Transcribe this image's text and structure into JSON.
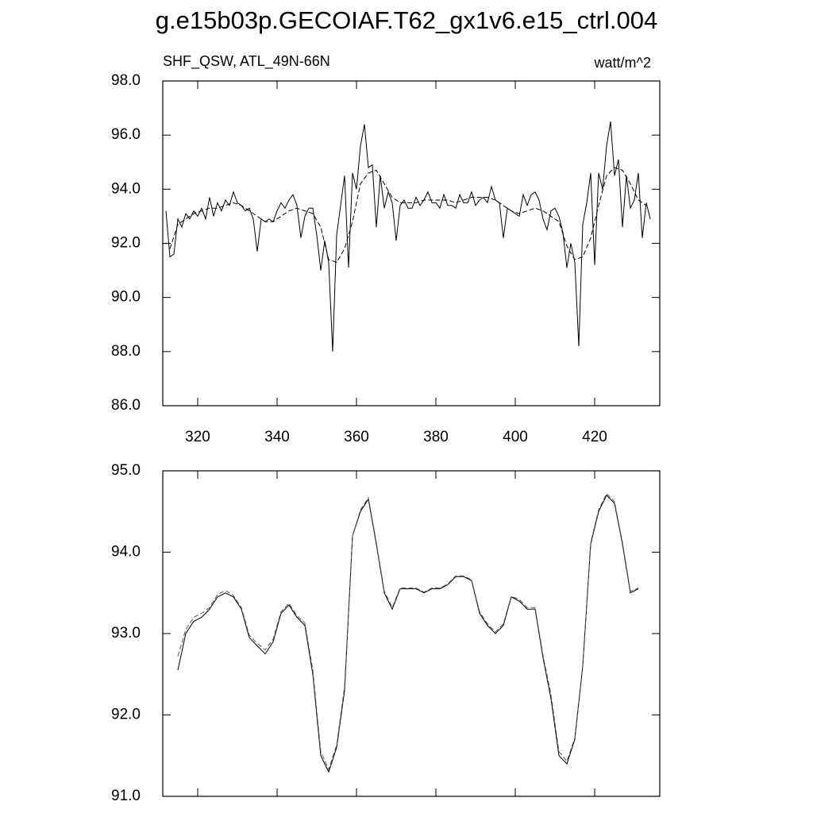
{
  "title": "g.e15b03p.GECOIAF.T62_gx1v6.e15_ctrl.004",
  "chart_data": [
    {
      "type": "line",
      "subtitle": "SHF_QSW, ATL_49N-66N",
      "units": "watt/m^2",
      "xlim": [
        311.2,
        436.4
      ],
      "xticks": [
        320,
        340,
        360,
        380,
        400,
        420
      ],
      "ylim": [
        86,
        98
      ],
      "yticks": [
        {
          "value": 86,
          "label": "86.0"
        },
        {
          "value": 88,
          "label": "88.0"
        },
        {
          "value": 90,
          "label": "90.0"
        },
        {
          "value": 92,
          "label": "92.0"
        },
        {
          "value": 94,
          "label": "94.0"
        },
        {
          "value": 96,
          "label": "96.0"
        },
        {
          "value": 98,
          "label": "98.0"
        }
      ],
      "x": [
        312,
        313,
        314,
        315,
        316,
        317,
        318,
        319,
        320,
        321,
        322,
        323,
        324,
        325,
        326,
        327,
        328,
        329,
        330,
        331,
        332,
        333,
        334,
        335,
        336,
        337,
        338,
        339,
        340,
        341,
        342,
        343,
        344,
        345,
        346,
        347,
        348,
        349,
        350,
        351,
        352,
        353,
        354,
        355,
        356,
        357,
        358,
        359,
        360,
        361,
        362,
        363,
        364,
        365,
        366,
        367,
        368,
        369,
        370,
        371,
        372,
        373,
        374,
        375,
        376,
        377,
        378,
        379,
        380,
        381,
        382,
        383,
        384,
        385,
        386,
        387,
        388,
        389,
        390,
        391,
        392,
        393,
        394,
        395,
        396,
        397,
        398,
        399,
        400,
        401,
        402,
        403,
        404,
        405,
        406,
        407,
        408,
        409,
        410,
        411,
        412,
        413,
        414,
        415,
        416,
        417,
        418,
        419,
        420,
        421,
        422,
        423,
        424,
        425,
        426,
        427,
        428,
        429,
        430,
        431,
        432,
        433,
        434
      ],
      "series": [
        {
          "color": "#000000",
          "dash": false,
          "values": [
            93.2,
            91.5,
            91.6,
            92.9,
            92.6,
            93.1,
            92.9,
            93.2,
            93.0,
            93.3,
            92.9,
            93.7,
            93.0,
            93.5,
            93.2,
            93.6,
            93.4,
            93.9,
            93.5,
            93.4,
            93.2,
            93.3,
            92.9,
            91.7,
            92.9,
            92.8,
            92.9,
            92.8,
            93.2,
            93.5,
            93.3,
            93.6,
            93.8,
            93.4,
            92.2,
            93.0,
            93.3,
            93.3,
            92.3,
            91.0,
            92.1,
            91.3,
            88.0,
            92.3,
            93.4,
            94.5,
            91.1,
            94.6,
            94.0,
            95.6,
            96.4,
            94.8,
            94.9,
            92.6,
            94.5,
            93.3,
            93.9,
            93.5,
            92.1,
            93.4,
            93.6,
            93.3,
            93.3,
            93.7,
            93.4,
            93.6,
            93.9,
            93.5,
            93.5,
            93.3,
            93.8,
            93.4,
            93.4,
            93.3,
            93.8,
            93.5,
            93.5,
            93.9,
            93.4,
            93.6,
            93.7,
            93.5,
            94.1,
            93.6,
            93.5,
            92.2,
            93.3,
            93.2,
            93.1,
            93.0,
            93.8,
            93.4,
            93.8,
            93.9,
            93.6,
            92.9,
            92.5,
            93.2,
            93.3,
            93.0,
            92.4,
            91.1,
            92.0,
            91.3,
            88.2,
            92.7,
            93.5,
            94.6,
            91.2,
            94.6,
            94.0,
            95.6,
            96.5,
            94.5,
            95.1,
            92.6,
            94.5,
            93.3,
            93.6,
            94.6,
            92.2,
            93.5,
            92.9
          ]
        },
        {
          "color": "#000000",
          "dash": true,
          "x": [
            313,
            315,
            317,
            319,
            321,
            323,
            325,
            327,
            329,
            331,
            333,
            335,
            337,
            339,
            341,
            343,
            345,
            347,
            349,
            351,
            353,
            355,
            357,
            359,
            361,
            363,
            365,
            367,
            369,
            371,
            373,
            375,
            377,
            379,
            381,
            383,
            385,
            387,
            389,
            391,
            393,
            395,
            397,
            399,
            401,
            403,
            405,
            407,
            409,
            411,
            413,
            415,
            417,
            419,
            421,
            423,
            425,
            427,
            429,
            431,
            433
          ],
          "values": [
            91.8,
            92.7,
            92.9,
            93.1,
            93.2,
            93.3,
            93.3,
            93.4,
            93.5,
            93.4,
            93.2,
            93.0,
            92.8,
            92.8,
            93.0,
            93.2,
            93.3,
            93.2,
            93.1,
            92.6,
            91.4,
            91.3,
            91.8,
            92.8,
            94.2,
            94.6,
            94.7,
            94.2,
            93.7,
            93.5,
            93.5,
            93.5,
            93.6,
            93.6,
            93.6,
            93.6,
            93.5,
            93.6,
            93.7,
            93.7,
            93.7,
            93.6,
            93.4,
            93.2,
            93.1,
            93.2,
            93.3,
            93.2,
            93.0,
            92.8,
            91.9,
            91.4,
            91.5,
            92.2,
            93.4,
            94.5,
            94.8,
            94.7,
            94.2,
            93.6,
            93.4
          ]
        }
      ]
    },
    {
      "type": "line",
      "xlim": [
        311.2,
        436.4
      ],
      "xticks": [
        320,
        340,
        360,
        380,
        400,
        420
      ],
      "xtick_labels": false,
      "ylim": [
        91,
        95
      ],
      "yticks": [
        {
          "value": 91,
          "label": "91.0"
        },
        {
          "value": 92,
          "label": "92.0"
        },
        {
          "value": 93,
          "label": "93.0"
        },
        {
          "value": 94,
          "label": "94.0"
        },
        {
          "value": 95,
          "label": "95.0"
        }
      ],
      "x": [
        315,
        317,
        319,
        321,
        323,
        325,
        327,
        329,
        331,
        333,
        335,
        337,
        339,
        341,
        343,
        345,
        347,
        349,
        351,
        353,
        355,
        357,
        359,
        361,
        363,
        365,
        367,
        369,
        371,
        373,
        375,
        377,
        379,
        381,
        383,
        385,
        387,
        389,
        391,
        393,
        395,
        397,
        399,
        401,
        403,
        405,
        407,
        409,
        411,
        413,
        415,
        417,
        419,
        421,
        423,
        425,
        427,
        429,
        431
      ],
      "series": [
        {
          "color": "#000000",
          "dash": false,
          "values": [
            92.55,
            93.0,
            93.15,
            93.2,
            93.3,
            93.45,
            93.5,
            93.45,
            93.3,
            92.95,
            92.85,
            92.75,
            92.9,
            93.25,
            93.35,
            93.2,
            93.1,
            92.5,
            91.5,
            91.3,
            91.6,
            92.3,
            94.2,
            94.5,
            94.65,
            94.1,
            93.5,
            93.3,
            93.55,
            93.55,
            93.55,
            93.5,
            93.55,
            93.55,
            93.6,
            93.7,
            93.7,
            93.65,
            93.25,
            93.1,
            93.0,
            93.1,
            93.45,
            93.4,
            93.3,
            93.3,
            92.7,
            92.2,
            91.5,
            91.4,
            91.7,
            92.6,
            94.1,
            94.5,
            94.7,
            94.6,
            94.1,
            93.5,
            93.55
          ]
        },
        {
          "color": "#555555",
          "dash": true,
          "values": [
            92.72,
            93.05,
            93.2,
            93.25,
            93.32,
            93.48,
            93.53,
            93.47,
            93.32,
            92.98,
            92.88,
            92.8,
            92.93,
            93.27,
            93.37,
            93.22,
            93.13,
            92.55,
            91.55,
            91.33,
            91.63,
            92.35,
            94.2,
            94.52,
            94.67,
            94.12,
            93.52,
            93.32,
            93.56,
            93.56,
            93.56,
            93.51,
            93.56,
            93.56,
            93.61,
            93.71,
            93.71,
            93.66,
            93.27,
            93.12,
            93.02,
            93.12,
            93.46,
            93.42,
            93.32,
            93.32,
            92.73,
            92.25,
            91.55,
            91.43,
            91.72,
            92.62,
            94.12,
            94.52,
            94.72,
            94.62,
            94.12,
            93.52,
            93.56
          ]
        }
      ]
    }
  ]
}
